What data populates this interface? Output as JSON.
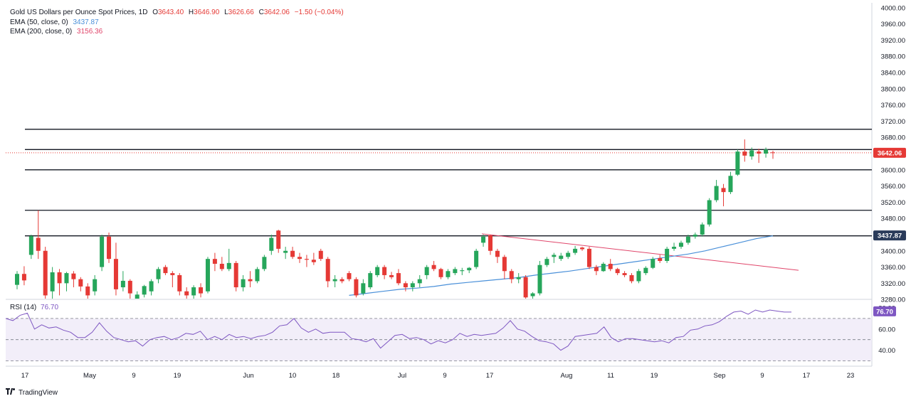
{
  "chart_data": {
    "type": "candlestick",
    "symbol": "Gold US Dollars per Ounce Spot Prices, 1D",
    "ohlc_header": {
      "O": "3643.40",
      "H": "3646.90",
      "L": "3626.66",
      "C": "3642.06",
      "change": "−1.50 (−0.04%)"
    },
    "ema50": {
      "label": "EMA (50, close, 0)",
      "value": "3437.87",
      "color": "#4a90d9"
    },
    "ema200": {
      "label": "EMA (200, close, 0)",
      "value": "3156.36",
      "color": "#e0456a"
    },
    "last_price_label": "3642.06",
    "ema50_price_label": "3437.87",
    "price_axis": {
      "ticks": [
        "4000.00",
        "3960.00",
        "3920.00",
        "3880.00",
        "3840.00",
        "3800.00",
        "3760.00",
        "3720.00",
        "3680.00",
        "3640.00",
        "3600.00",
        "3560.00",
        "3520.00",
        "3480.00",
        "3440.00",
        "3400.00",
        "3360.00",
        "3320.00",
        "3280.00"
      ],
      "ylim": [
        3282,
        4005
      ]
    },
    "x_axis_labels": [
      "17",
      "May",
      "9",
      "19",
      "Jun",
      "10",
      "18",
      "Jul",
      "9",
      "17",
      "Aug",
      "11",
      "19",
      "Sep",
      "9",
      "17",
      "23"
    ],
    "horizontal_levels": [
      3700,
      3650,
      3600,
      3500,
      3437
    ],
    "trendline": {
      "from": [
        3442,
        3441
      ],
      "to": [
        3352,
        3352
      ]
    },
    "candles": [
      {
        "date": "Apr 16",
        "o": 3316,
        "h": 3350,
        "l": 3305,
        "c": 3343
      },
      {
        "date": "Apr 17",
        "o": 3343,
        "h": 3362,
        "l": 3315,
        "c": 3327
      },
      {
        "date": "Apr 18",
        "o": 3390,
        "h": 3440,
        "l": 3380,
        "c": 3436
      },
      {
        "date": "Apr 21",
        "o": 3432,
        "h": 3500,
        "l": 3380,
        "c": 3400
      },
      {
        "date": "Apr 22",
        "o": 3400,
        "h": 3410,
        "l": 3270,
        "c": 3290
      },
      {
        "date": "Apr 23",
        "o": 3300,
        "h": 3360,
        "l": 3280,
        "c": 3347
      },
      {
        "date": "Apr 24",
        "o": 3347,
        "h": 3355,
        "l": 3290,
        "c": 3320
      },
      {
        "date": "Apr 25",
        "o": 3320,
        "h": 3348,
        "l": 3300,
        "c": 3345
      },
      {
        "date": "Apr 28",
        "o": 3344,
        "h": 3350,
        "l": 3310,
        "c": 3330
      },
      {
        "date": "Apr 29",
        "o": 3330,
        "h": 3335,
        "l": 3300,
        "c": 3312
      },
      {
        "date": "Apr 30",
        "o": 3312,
        "h": 3320,
        "l": 3270,
        "c": 3290
      },
      {
        "date": "May 5",
        "o": 3300,
        "h": 3340,
        "l": 3290,
        "c": 3330
      },
      {
        "date": "May 6",
        "o": 3360,
        "h": 3440,
        "l": 3350,
        "c": 3435
      },
      {
        "date": "May 7",
        "o": 3435,
        "h": 3445,
        "l": 3370,
        "c": 3380
      },
      {
        "date": "May 8",
        "o": 3380,
        "h": 3420,
        "l": 3290,
        "c": 3305
      },
      {
        "date": "May 9",
        "o": 3310,
        "h": 3350,
        "l": 3300,
        "c": 3326
      },
      {
        "date": "May 12",
        "o": 3326,
        "h": 3330,
        "l": 3280,
        "c": 3295
      },
      {
        "date": "May 19",
        "o": 3270,
        "h": 3300,
        "l": 3260,
        "c": 3292
      },
      {
        "date": "May 20",
        "o": 3292,
        "h": 3316,
        "l": 3285,
        "c": 3313
      },
      {
        "date": "May 21",
        "o": 3300,
        "h": 3330,
        "l": 3290,
        "c": 3325
      },
      {
        "date": "May 22",
        "o": 3330,
        "h": 3360,
        "l": 3320,
        "c": 3355
      },
      {
        "date": "May 23",
        "o": 3360,
        "h": 3365,
        "l": 3340,
        "c": 3345
      },
      {
        "date": "May 26",
        "o": 3345,
        "h": 3350,
        "l": 3310,
        "c": 3340
      },
      {
        "date": "May 27",
        "o": 3340,
        "h": 3345,
        "l": 3290,
        "c": 3300
      },
      {
        "date": "May 28",
        "o": 3300,
        "h": 3310,
        "l": 3280,
        "c": 3290
      },
      {
        "date": "May 29",
        "o": 3290,
        "h": 3315,
        "l": 3280,
        "c": 3310
      },
      {
        "date": "May 30",
        "o": 3310,
        "h": 3320,
        "l": 3285,
        "c": 3295
      },
      {
        "date": "Jun 2",
        "o": 3300,
        "h": 3385,
        "l": 3295,
        "c": 3380
      },
      {
        "date": "Jun 3",
        "o": 3380,
        "h": 3395,
        "l": 3350,
        "c": 3368
      },
      {
        "date": "Jun 4",
        "o": 3368,
        "h": 3385,
        "l": 3350,
        "c": 3355
      },
      {
        "date": "Jun 5",
        "o": 3355,
        "h": 3405,
        "l": 3350,
        "c": 3370
      },
      {
        "date": "Jun 6",
        "o": 3370,
        "h": 3375,
        "l": 3300,
        "c": 3310
      },
      {
        "date": "Jun 9",
        "o": 3310,
        "h": 3340,
        "l": 3300,
        "c": 3330
      },
      {
        "date": "Jun 10",
        "o": 3330,
        "h": 3350,
        "l": 3310,
        "c": 3325
      },
      {
        "date": "Jun 11",
        "o": 3325,
        "h": 3360,
        "l": 3320,
        "c": 3355
      },
      {
        "date": "Jun 12",
        "o": 3355,
        "h": 3390,
        "l": 3350,
        "c": 3385
      },
      {
        "date": "Jun 13",
        "o": 3400,
        "h": 3440,
        "l": 3390,
        "c": 3432
      },
      {
        "date": "Jun 16",
        "o": 3450,
        "h": 3452,
        "l": 3395,
        "c": 3405
      },
      {
        "date": "Jun 17",
        "o": 3395,
        "h": 3410,
        "l": 3380,
        "c": 3400
      },
      {
        "date": "Jun 18",
        "o": 3400,
        "h": 3410,
        "l": 3380,
        "c": 3385
      },
      {
        "date": "Jun 19",
        "o": 3385,
        "h": 3395,
        "l": 3370,
        "c": 3380
      },
      {
        "date": "Jun 20",
        "o": 3380,
        "h": 3390,
        "l": 3360,
        "c": 3378
      },
      {
        "date": "Jun 23",
        "o": 3378,
        "h": 3395,
        "l": 3365,
        "c": 3372
      },
      {
        "date": "Jun 24",
        "o": 3400,
        "h": 3405,
        "l": 3375,
        "c": 3380
      },
      {
        "date": "Jun 25",
        "o": 3380,
        "h": 3385,
        "l": 3310,
        "c": 3325
      },
      {
        "date": "Jun 26",
        "o": 3325,
        "h": 3340,
        "l": 3310,
        "c": 3330
      },
      {
        "date": "Jun 27",
        "o": 3330,
        "h": 3335,
        "l": 3320,
        "c": 3325
      },
      {
        "date": "Jun 30",
        "o": 3345,
        "h": 3350,
        "l": 3325,
        "c": 3330
      },
      {
        "date": "Jul 1",
        "o": 3330,
        "h": 3335,
        "l": 3285,
        "c": 3290
      },
      {
        "date": "Jul 2",
        "o": 3295,
        "h": 3330,
        "l": 3290,
        "c": 3320
      },
      {
        "date": "Jul 3",
        "o": 3310,
        "h": 3350,
        "l": 3305,
        "c": 3345
      },
      {
        "date": "Jul 4",
        "o": 3340,
        "h": 3365,
        "l": 3335,
        "c": 3360
      },
      {
        "date": "Jul 7",
        "o": 3360,
        "h": 3365,
        "l": 3330,
        "c": 3340
      },
      {
        "date": "Jul 8",
        "o": 3340,
        "h": 3348,
        "l": 3330,
        "c": 3335
      },
      {
        "date": "Jul 9",
        "o": 3345,
        "h": 3355,
        "l": 3315,
        "c": 3320
      },
      {
        "date": "Jul 10",
        "o": 3320,
        "h": 3325,
        "l": 3300,
        "c": 3310
      },
      {
        "date": "Jul 11",
        "o": 3310,
        "h": 3325,
        "l": 3300,
        "c": 3320
      },
      {
        "date": "Jul 14",
        "o": 3320,
        "h": 3340,
        "l": 3310,
        "c": 3330
      },
      {
        "date": "Jul 15",
        "o": 3340,
        "h": 3365,
        "l": 3330,
        "c": 3360
      },
      {
        "date": "Jul 16",
        "o": 3365,
        "h": 3375,
        "l": 3350,
        "c": 3355
      },
      {
        "date": "Jul 17",
        "o": 3355,
        "h": 3358,
        "l": 3330,
        "c": 3335
      },
      {
        "date": "Jul 18",
        "o": 3335,
        "h": 3355,
        "l": 3330,
        "c": 3350
      },
      {
        "date": "Jul 21",
        "o": 3345,
        "h": 3360,
        "l": 3340,
        "c": 3355
      },
      {
        "date": "Jul 22",
        "o": 3350,
        "h": 3358,
        "l": 3340,
        "c": 3352
      },
      {
        "date": "Jul 23",
        "o": 3352,
        "h": 3360,
        "l": 3345,
        "c": 3358
      },
      {
        "date": "Jul 24",
        "o": 3360,
        "h": 3405,
        "l": 3355,
        "c": 3400
      },
      {
        "date": "Jul 25",
        "o": 3420,
        "h": 3440,
        "l": 3410,
        "c": 3435
      },
      {
        "date": "Jul 28",
        "o": 3438,
        "h": 3440,
        "l": 3390,
        "c": 3400
      },
      {
        "date": "Jul 29",
        "o": 3400,
        "h": 3405,
        "l": 3370,
        "c": 3385
      },
      {
        "date": "Jul 30",
        "o": 3385,
        "h": 3390,
        "l": 3330,
        "c": 3350
      },
      {
        "date": "Jul 31",
        "o": 3350,
        "h": 3355,
        "l": 3320,
        "c": 3330
      },
      {
        "date": "Aug 1",
        "o": 3330,
        "h": 3345,
        "l": 3320,
        "c": 3335
      },
      {
        "date": "Aug 4",
        "o": 3335,
        "h": 3340,
        "l": 3275,
        "c": 3285
      },
      {
        "date": "Aug 5",
        "o": 3288,
        "h": 3298,
        "l": 3272,
        "c": 3295
      },
      {
        "date": "Aug 6",
        "o": 3295,
        "h": 3375,
        "l": 3290,
        "c": 3365
      },
      {
        "date": "Aug 7",
        "o": 3365,
        "h": 3385,
        "l": 3360,
        "c": 3380
      },
      {
        "date": "Aug 8",
        "o": 3385,
        "h": 3395,
        "l": 3370,
        "c": 3390
      },
      {
        "date": "Aug 11",
        "o": 3380,
        "h": 3395,
        "l": 3375,
        "c": 3388
      },
      {
        "date": "Aug 12",
        "o": 3385,
        "h": 3400,
        "l": 3380,
        "c": 3395
      },
      {
        "date": "Aug 13",
        "o": 3395,
        "h": 3412,
        "l": 3390,
        "c": 3405
      },
      {
        "date": "Aug 14",
        "o": 3408,
        "h": 3410,
        "l": 3400,
        "c": 3404
      },
      {
        "date": "Aug 15",
        "o": 3405,
        "h": 3410,
        "l": 3355,
        "c": 3360
      },
      {
        "date": "Aug 18",
        "o": 3360,
        "h": 3365,
        "l": 3340,
        "c": 3350
      },
      {
        "date": "Aug 19",
        "o": 3350,
        "h": 3372,
        "l": 3348,
        "c": 3368
      },
      {
        "date": "Aug 20",
        "o": 3368,
        "h": 3380,
        "l": 3350,
        "c": 3355
      },
      {
        "date": "Aug 21",
        "o": 3355,
        "h": 3358,
        "l": 3340,
        "c": 3345
      },
      {
        "date": "Aug 22",
        "o": 3345,
        "h": 3350,
        "l": 3335,
        "c": 3340
      },
      {
        "date": "Aug 25",
        "o": 3340,
        "h": 3345,
        "l": 3320,
        "c": 3325
      },
      {
        "date": "Aug 26",
        "o": 3325,
        "h": 3355,
        "l": 3320,
        "c": 3350
      },
      {
        "date": "Aug 27",
        "o": 3345,
        "h": 3362,
        "l": 3340,
        "c": 3358
      },
      {
        "date": "Aug 28",
        "o": 3358,
        "h": 3385,
        "l": 3355,
        "c": 3380
      },
      {
        "date": "Aug 29",
        "o": 3382,
        "h": 3390,
        "l": 3370,
        "c": 3375
      },
      {
        "date": "Sep 1",
        "o": 3375,
        "h": 3410,
        "l": 3370,
        "c": 3405
      },
      {
        "date": "Sep 2",
        "o": 3405,
        "h": 3420,
        "l": 3400,
        "c": 3410
      },
      {
        "date": "Sep 3",
        "o": 3410,
        "h": 3425,
        "l": 3405,
        "c": 3420
      },
      {
        "date": "Sep 4",
        "o": 3420,
        "h": 3440,
        "l": 3415,
        "c": 3435
      },
      {
        "date": "Sep 5",
        "o": 3435,
        "h": 3445,
        "l": 3430,
        "c": 3440
      },
      {
        "date": "Sep 8",
        "o": 3440,
        "h": 3470,
        "l": 3435,
        "c": 3465
      },
      {
        "date": "Sep 9",
        "o": 3465,
        "h": 3530,
        "l": 3460,
        "c": 3525
      },
      {
        "date": "Sep 10",
        "o": 3525,
        "h": 3575,
        "l": 3520,
        "c": 3560
      },
      {
        "date": "Sep 11",
        "o": 3555,
        "h": 3565,
        "l": 3510,
        "c": 3545
      },
      {
        "date": "Sep 12",
        "o": 3545,
        "h": 3595,
        "l": 3540,
        "c": 3585
      },
      {
        "date": "Sep 15",
        "o": 3588,
        "h": 3650,
        "l": 3585,
        "c": 3645
      },
      {
        "date": "Sep 16",
        "o": 3645,
        "h": 3675,
        "l": 3620,
        "c": 3635
      },
      {
        "date": "Sep 17",
        "o": 3633,
        "h": 3655,
        "l": 3625,
        "c": 3648
      },
      {
        "date": "Sep 18",
        "o": 3645,
        "h": 3652,
        "l": 3617,
        "c": 3640
      },
      {
        "date": "Sep 19",
        "o": 3640,
        "h": 3655,
        "l": 3630,
        "c": 3650
      },
      {
        "date": "Sep 22",
        "o": 3643,
        "h": 3647,
        "l": 3627,
        "c": 3642
      }
    ],
    "ema50_series": [
      3290,
      3295,
      3300,
      3305,
      3308,
      3312,
      3318,
      3322,
      3326,
      3330,
      3334,
      3340,
      3345,
      3350,
      3356,
      3362,
      3368,
      3374,
      3380,
      3386,
      3392,
      3400,
      3410,
      3420,
      3430,
      3437
    ],
    "rsi": {
      "label": "RSI (14)",
      "value": "76.70",
      "axis_ticks": [
        "80.00",
        "60.00",
        "40.00"
      ],
      "ylim": [
        27,
        82
      ],
      "bands": [
        70,
        50,
        30
      ],
      "series": [
        70,
        68,
        73,
        75,
        60,
        64,
        61,
        62,
        59,
        57,
        52,
        52,
        57,
        66,
        58,
        52,
        50,
        48,
        49,
        44,
        50,
        52,
        53,
        50,
        52,
        56,
        55,
        58,
        50,
        53,
        50,
        55,
        52,
        53,
        51,
        53,
        54,
        57,
        63,
        64,
        70,
        61,
        57,
        60,
        56,
        57,
        57,
        57,
        51,
        50,
        48,
        51,
        42,
        48,
        54,
        55,
        51,
        52,
        50,
        46,
        49,
        47,
        50,
        56,
        53,
        55,
        54,
        55,
        56,
        61,
        68,
        60,
        58,
        53,
        49,
        48,
        46,
        40,
        44,
        53,
        54,
        55,
        56,
        62,
        52,
        48,
        51,
        51,
        50,
        49,
        48,
        49,
        47,
        52,
        53,
        59,
        60,
        63,
        64,
        67,
        72,
        76,
        77,
        74,
        78,
        76,
        78,
        77,
        76,
        76
      ]
    }
  }
}
